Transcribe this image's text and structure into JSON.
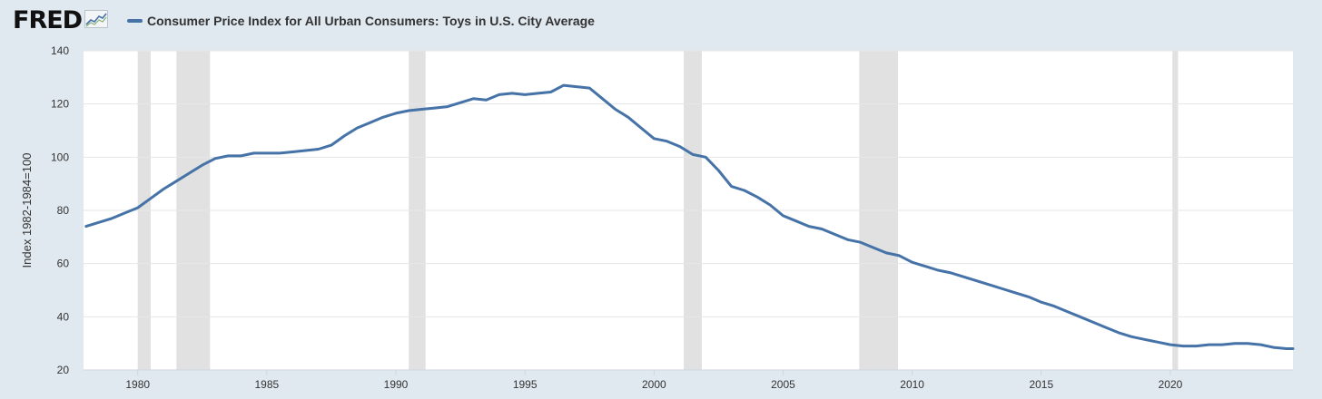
{
  "header": {
    "logo_text": "FRED",
    "logo_icon": "line-chart-icon"
  },
  "colors": {
    "series": "#4572a7",
    "recession": "#e1e1e1",
    "plot_bg": "#ffffff",
    "page_bg": "#e1e9f0",
    "grid": "#e6e6e6"
  },
  "chart_data": {
    "type": "line",
    "title": "",
    "xlabel": "",
    "ylabel": "Index 1982-1984=100",
    "xlim": [
      1977.9,
      2024.75
    ],
    "ylim": [
      20,
      140
    ],
    "y_ticks": [
      20,
      40,
      60,
      80,
      100,
      120,
      140
    ],
    "x_ticks": [
      1980,
      1985,
      1990,
      1995,
      2000,
      2005,
      2010,
      2015,
      2020
    ],
    "grid": true,
    "legend_position": "top-left",
    "recessions": [
      [
        1980.0,
        1980.5
      ],
      [
        1981.5,
        1982.8
      ],
      [
        1990.5,
        1991.15
      ],
      [
        2001.15,
        2001.85
      ],
      [
        2007.95,
        2009.45
      ],
      [
        2020.08,
        2020.3
      ]
    ],
    "series": [
      {
        "name": "Consumer Price Index for All Urban Consumers: Toys in U.S. City Average",
        "x": [
          1978.0,
          1978.5,
          1979.0,
          1979.5,
          1980.0,
          1980.5,
          1981.0,
          1981.5,
          1982.0,
          1982.5,
          1983.0,
          1983.5,
          1984.0,
          1984.5,
          1985.0,
          1985.5,
          1986.0,
          1986.5,
          1987.0,
          1987.5,
          1988.0,
          1988.5,
          1989.0,
          1989.5,
          1990.0,
          1990.5,
          1991.0,
          1991.5,
          1992.0,
          1992.5,
          1993.0,
          1993.5,
          1994.0,
          1994.5,
          1995.0,
          1995.5,
          1996.0,
          1996.5,
          1997.0,
          1997.5,
          1998.0,
          1998.5,
          1999.0,
          1999.5,
          2000.0,
          2000.5,
          2001.0,
          2001.5,
          2002.0,
          2002.5,
          2003.0,
          2003.5,
          2004.0,
          2004.5,
          2005.0,
          2005.5,
          2006.0,
          2006.5,
          2007.0,
          2007.5,
          2008.0,
          2008.5,
          2009.0,
          2009.5,
          2010.0,
          2010.5,
          2011.0,
          2011.5,
          2012.0,
          2012.5,
          2013.0,
          2013.5,
          2014.0,
          2014.5,
          2015.0,
          2015.5,
          2016.0,
          2016.5,
          2017.0,
          2017.5,
          2018.0,
          2018.5,
          2019.0,
          2019.5,
          2020.0,
          2020.5,
          2021.0,
          2021.5,
          2022.0,
          2022.5,
          2023.0,
          2023.5,
          2024.0,
          2024.5,
          2024.75
        ],
        "values": [
          74,
          75.5,
          77,
          79,
          81,
          84.5,
          88,
          91,
          94,
          97,
          99.5,
          100.5,
          100.5,
          101.5,
          101.5,
          101.5,
          102,
          102.5,
          103,
          104.5,
          108,
          111,
          113,
          115,
          116.5,
          117.5,
          118,
          118.5,
          119,
          120.5,
          122,
          121.5,
          123.5,
          124,
          123.5,
          124,
          124.5,
          127,
          126.5,
          126,
          122,
          118,
          115,
          111,
          107,
          106,
          104,
          101,
          100,
          95,
          89,
          87.5,
          85,
          82,
          78,
          76,
          74,
          73,
          71,
          69,
          68,
          66,
          64,
          63,
          60.5,
          59,
          57.5,
          56.5,
          55,
          53.5,
          52,
          50.5,
          49,
          47.5,
          45.5,
          44,
          42,
          40,
          38,
          36,
          34,
          32.5,
          31.5,
          30.5,
          29.5,
          29,
          29,
          29.5,
          29.5,
          30,
          30,
          29.5,
          28.5,
          28,
          28
        ]
      }
    ]
  }
}
